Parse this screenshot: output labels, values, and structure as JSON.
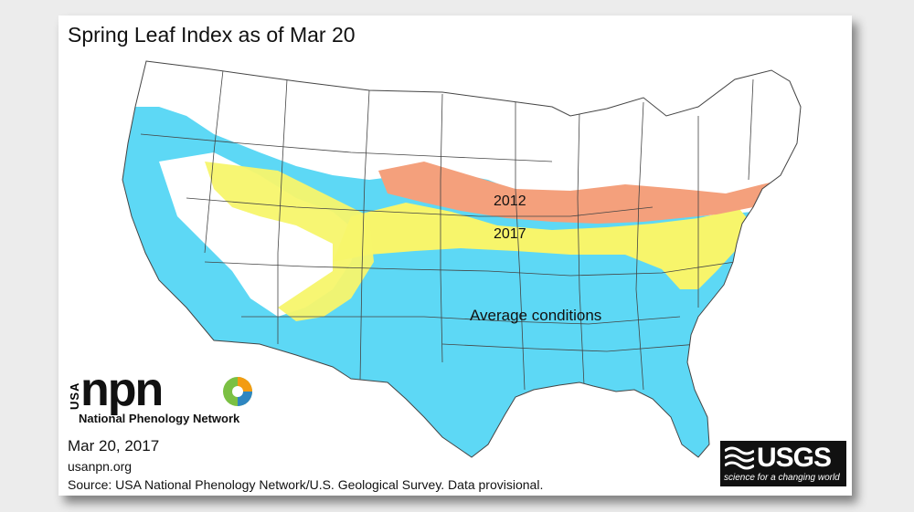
{
  "title": "Spring Leaf Index as of Mar 20",
  "legend_labels": {
    "band_2012": "2012",
    "band_2017": "2017",
    "average": "Average conditions"
  },
  "colors": {
    "average": "#5dd8f5",
    "year_2017": "#f7f56b",
    "year_2012": "#f4a07c",
    "boundary": "#444444"
  },
  "npn_logo": {
    "usa": "USA",
    "wordmark": "npn",
    "name": "National Phenology Network"
  },
  "date": "Mar 20, 2017",
  "url": "usanpn.org",
  "source": "Source: USA National Phenology Network/U.S. Geological Survey. Data provisional.",
  "usgs_logo": {
    "wordmark": "USGS",
    "tagline": "science for a changing world"
  }
}
